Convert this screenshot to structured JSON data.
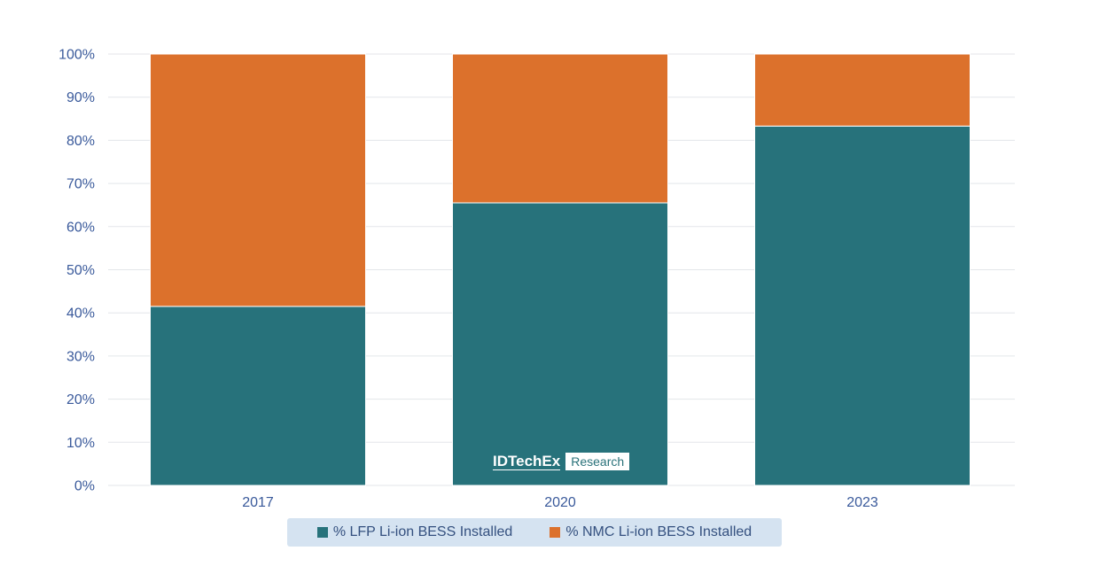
{
  "chart_data": {
    "type": "bar",
    "stacked": true,
    "categories": [
      "2017",
      "2020",
      "2023"
    ],
    "series": [
      {
        "name": "% LFP Li-ion BESS Installed",
        "values": [
          41.5,
          65.5,
          83.3
        ],
        "color": "#27727b"
      },
      {
        "name": "% NMC Li-ion BESS Installed",
        "values": [
          58.5,
          34.5,
          16.7
        ],
        "color": "#dc712c"
      }
    ],
    "title": "",
    "xlabel": "",
    "ylabel": "",
    "ylim": [
      0,
      100
    ],
    "yticks": [
      "0%",
      "10%",
      "20%",
      "30%",
      "40%",
      "50%",
      "60%",
      "70%",
      "80%",
      "90%",
      "100%"
    ],
    "grid": true,
    "legend_position": "bottom"
  },
  "watermark": {
    "brand": "IDTechEx",
    "badge": "Research"
  }
}
